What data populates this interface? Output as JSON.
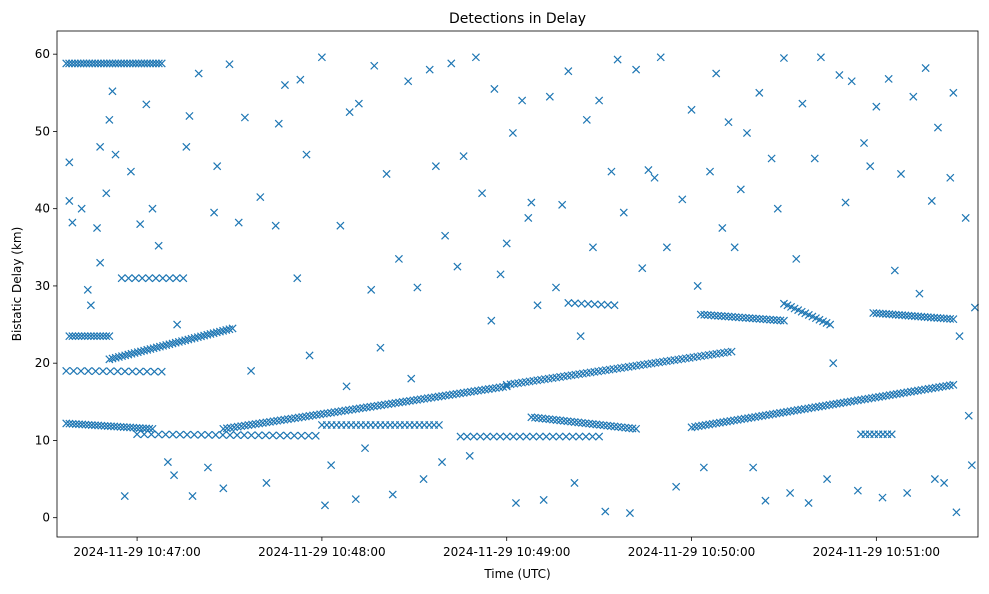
{
  "chart_data": {
    "type": "scatter",
    "title": "Detections in Delay",
    "xlabel": "Time (UTC)",
    "ylabel": "Bistatic Delay (km)",
    "marker": "x",
    "color": "#1f77b4",
    "grid": false,
    "legend": false,
    "xlim": [
      "2024-11-29 10:46:34",
      "2024-11-29 10:51:33"
    ],
    "ylim": [
      -2.5,
      63
    ],
    "x_ticks": [
      "2024-11-29 10:47:00",
      "2024-11-29 10:48:00",
      "2024-11-29 10:49:00",
      "2024-11-29 10:50:00",
      "2024-11-29 10:51:00"
    ],
    "y_ticks": [
      0,
      10,
      20,
      30,
      40,
      50,
      60
    ],
    "tracks": [
      {
        "start": [
          "2024-11-29 10:46:38",
          23.5
        ],
        "end": [
          "2024-11-29 10:46:51",
          23.5
        ],
        "points": 14
      },
      {
        "start": [
          "2024-11-29 10:46:51",
          20.5
        ],
        "end": [
          "2024-11-29 10:47:31",
          24.5
        ],
        "points": 40
      },
      {
        "start": [
          "2024-11-29 10:46:37",
          12.2
        ],
        "end": [
          "2024-11-29 10:47:05",
          11.5
        ],
        "points": 28
      },
      {
        "start": [
          "2024-11-29 10:47:28",
          11.5
        ],
        "end": [
          "2024-11-29 10:49:00",
          17.0
        ],
        "points": 80
      },
      {
        "start": [
          "2024-11-29 10:49:00",
          17.2
        ],
        "end": [
          "2024-11-29 10:50:13",
          21.5
        ],
        "points": 60
      },
      {
        "start": [
          "2024-11-29 10:49:08",
          13.0
        ],
        "end": [
          "2024-11-29 10:49:42",
          11.5
        ],
        "points": 30
      },
      {
        "start": [
          "2024-11-29 10:48:00",
          12.0
        ],
        "end": [
          "2024-11-29 10:48:38",
          12.0
        ],
        "points": 25
      },
      {
        "start": [
          "2024-11-29 10:50:00",
          11.7
        ],
        "end": [
          "2024-11-29 10:51:25",
          17.2
        ],
        "points": 75
      },
      {
        "start": [
          "2024-11-29 10:50:03",
          26.3
        ],
        "end": [
          "2024-11-29 10:50:30",
          25.5
        ],
        "points": 25
      },
      {
        "start": [
          "2024-11-29 10:50:30",
          27.7
        ],
        "end": [
          "2024-11-29 10:50:45",
          25.0
        ],
        "points": 14
      },
      {
        "start": [
          "2024-11-29 10:50:59",
          26.5
        ],
        "end": [
          "2024-11-29 10:51:25",
          25.7
        ],
        "points": 26
      },
      {
        "start": [
          "2024-11-29 10:46:37",
          58.8
        ],
        "end": [
          "2024-11-29 10:47:08",
          58.8
        ],
        "points": 34
      },
      {
        "start": [
          "2024-11-29 10:46:37",
          19.0
        ],
        "end": [
          "2024-11-29 10:47:08",
          18.9
        ],
        "points": 14
      },
      {
        "start": [
          "2024-11-29 10:46:55",
          31.0
        ],
        "end": [
          "2024-11-29 10:47:15",
          31.0
        ],
        "points": 10
      },
      {
        "start": [
          "2024-11-29 10:48:45",
          10.5
        ],
        "end": [
          "2024-11-29 10:49:30",
          10.5
        ],
        "points": 22
      },
      {
        "start": [
          "2024-11-29 10:47:00",
          10.8
        ],
        "end": [
          "2024-11-29 10:47:58",
          10.6
        ],
        "points": 26
      },
      {
        "start": [
          "2024-11-29 10:49:20",
          27.8
        ],
        "end": [
          "2024-11-29 10:49:35",
          27.5
        ],
        "points": 8
      },
      {
        "start": [
          "2024-11-29 10:50:55",
          10.8
        ],
        "end": [
          "2024-11-29 10:51:05",
          10.8
        ],
        "points": 8
      }
    ],
    "scattered_points": [
      [
        "2024-11-29 10:46:38",
        46.0
      ],
      [
        "2024-11-29 10:46:38",
        41.0
      ],
      [
        "2024-11-29 10:46:39",
        38.2
      ],
      [
        "2024-11-29 10:46:42",
        40.0
      ],
      [
        "2024-11-29 10:46:44",
        29.5
      ],
      [
        "2024-11-29 10:46:45",
        27.5
      ],
      [
        "2024-11-29 10:46:47",
        37.5
      ],
      [
        "2024-11-29 10:46:48",
        33.0
      ],
      [
        "2024-11-29 10:46:48",
        48.0
      ],
      [
        "2024-11-29 10:46:50",
        42.0
      ],
      [
        "2024-11-29 10:46:51",
        51.5
      ],
      [
        "2024-11-29 10:46:52",
        55.2
      ],
      [
        "2024-11-29 10:46:53",
        47.0
      ],
      [
        "2024-11-29 10:46:56",
        2.8
      ],
      [
        "2024-11-29 10:46:58",
        44.8
      ],
      [
        "2024-11-29 10:47:01",
        38.0
      ],
      [
        "2024-11-29 10:47:03",
        53.5
      ],
      [
        "2024-11-29 10:47:05",
        40.0
      ],
      [
        "2024-11-29 10:47:07",
        35.2
      ],
      [
        "2024-11-29 10:47:10",
        7.2
      ],
      [
        "2024-11-29 10:47:12",
        5.5
      ],
      [
        "2024-11-29 10:47:13",
        25.0
      ],
      [
        "2024-11-29 10:47:16",
        48.0
      ],
      [
        "2024-11-29 10:47:17",
        52.0
      ],
      [
        "2024-11-29 10:47:18",
        2.8
      ],
      [
        "2024-11-29 10:47:20",
        57.5
      ],
      [
        "2024-11-29 10:47:23",
        6.5
      ],
      [
        "2024-11-29 10:47:25",
        39.5
      ],
      [
        "2024-11-29 10:47:26",
        45.5
      ],
      [
        "2024-11-29 10:47:28",
        3.8
      ],
      [
        "2024-11-29 10:47:30",
        58.7
      ],
      [
        "2024-11-29 10:47:33",
        38.2
      ],
      [
        "2024-11-29 10:47:35",
        51.8
      ],
      [
        "2024-11-29 10:47:37",
        19.0
      ],
      [
        "2024-11-29 10:47:40",
        41.5
      ],
      [
        "2024-11-29 10:47:42",
        4.5
      ],
      [
        "2024-11-29 10:47:45",
        37.8
      ],
      [
        "2024-11-29 10:47:46",
        51.0
      ],
      [
        "2024-11-29 10:47:48",
        56.0
      ],
      [
        "2024-11-29 10:47:52",
        31.0
      ],
      [
        "2024-11-29 10:47:53",
        56.7
      ],
      [
        "2024-11-29 10:47:55",
        47.0
      ],
      [
        "2024-11-29 10:47:56",
        21.0
      ],
      [
        "2024-11-29 10:48:00",
        59.6
      ],
      [
        "2024-11-29 10:48:01",
        1.6
      ],
      [
        "2024-11-29 10:48:03",
        6.8
      ],
      [
        "2024-11-29 10:48:06",
        37.8
      ],
      [
        "2024-11-29 10:48:08",
        17.0
      ],
      [
        "2024-11-29 10:48:09",
        52.5
      ],
      [
        "2024-11-29 10:48:11",
        2.4
      ],
      [
        "2024-11-29 10:48:12",
        53.6
      ],
      [
        "2024-11-29 10:48:14",
        9.0
      ],
      [
        "2024-11-29 10:48:16",
        29.5
      ],
      [
        "2024-11-29 10:48:17",
        58.5
      ],
      [
        "2024-11-29 10:48:19",
        22.0
      ],
      [
        "2024-11-29 10:48:21",
        44.5
      ],
      [
        "2024-11-29 10:48:23",
        3.0
      ],
      [
        "2024-11-29 10:48:25",
        33.5
      ],
      [
        "2024-11-29 10:48:28",
        56.5
      ],
      [
        "2024-11-29 10:48:29",
        18.0
      ],
      [
        "2024-11-29 10:48:31",
        29.8
      ],
      [
        "2024-11-29 10:48:33",
        5.0
      ],
      [
        "2024-11-29 10:48:35",
        58.0
      ],
      [
        "2024-11-29 10:48:37",
        45.5
      ],
      [
        "2024-11-29 10:48:39",
        7.2
      ],
      [
        "2024-11-29 10:48:40",
        36.5
      ],
      [
        "2024-11-29 10:48:42",
        58.8
      ],
      [
        "2024-11-29 10:48:44",
        32.5
      ],
      [
        "2024-11-29 10:48:46",
        46.8
      ],
      [
        "2024-11-29 10:48:48",
        8.0
      ],
      [
        "2024-11-29 10:48:50",
        59.6
      ],
      [
        "2024-11-29 10:48:52",
        42.0
      ],
      [
        "2024-11-29 10:48:55",
        25.5
      ],
      [
        "2024-11-29 10:48:56",
        55.5
      ],
      [
        "2024-11-29 10:48:58",
        31.5
      ],
      [
        "2024-11-29 10:49:00",
        35.5
      ],
      [
        "2024-11-29 10:49:02",
        49.8
      ],
      [
        "2024-11-29 10:49:03",
        1.9
      ],
      [
        "2024-11-29 10:49:05",
        54.0
      ],
      [
        "2024-11-29 10:49:07",
        38.8
      ],
      [
        "2024-11-29 10:49:08",
        40.8
      ],
      [
        "2024-11-29 10:49:10",
        27.5
      ],
      [
        "2024-11-29 10:49:12",
        2.3
      ],
      [
        "2024-11-29 10:49:14",
        54.5
      ],
      [
        "2024-11-29 10:49:16",
        29.8
      ],
      [
        "2024-11-29 10:49:18",
        40.5
      ],
      [
        "2024-11-29 10:49:20",
        57.8
      ],
      [
        "2024-11-29 10:49:22",
        4.5
      ],
      [
        "2024-11-29 10:49:24",
        23.5
      ],
      [
        "2024-11-29 10:49:26",
        51.5
      ],
      [
        "2024-11-29 10:49:28",
        35.0
      ],
      [
        "2024-11-29 10:49:30",
        54.0
      ],
      [
        "2024-11-29 10:49:32",
        0.8
      ],
      [
        "2024-11-29 10:49:34",
        44.8
      ],
      [
        "2024-11-29 10:49:36",
        59.3
      ],
      [
        "2024-11-29 10:49:38",
        39.5
      ],
      [
        "2024-11-29 10:49:40",
        0.6
      ],
      [
        "2024-11-29 10:49:42",
        58.0
      ],
      [
        "2024-11-29 10:49:44",
        32.3
      ],
      [
        "2024-11-29 10:49:46",
        45.0
      ],
      [
        "2024-11-29 10:49:48",
        44.0
      ],
      [
        "2024-11-29 10:49:50",
        59.6
      ],
      [
        "2024-11-29 10:49:52",
        35.0
      ],
      [
        "2024-11-29 10:49:55",
        4.0
      ],
      [
        "2024-11-29 10:49:57",
        41.2
      ],
      [
        "2024-11-29 10:50:00",
        52.8
      ],
      [
        "2024-11-29 10:50:02",
        30.0
      ],
      [
        "2024-11-29 10:50:04",
        6.5
      ],
      [
        "2024-11-29 10:50:06",
        44.8
      ],
      [
        "2024-11-29 10:50:08",
        57.5
      ],
      [
        "2024-11-29 10:50:10",
        37.5
      ],
      [
        "2024-11-29 10:50:12",
        51.2
      ],
      [
        "2024-11-29 10:50:14",
        35.0
      ],
      [
        "2024-11-29 10:50:16",
        42.5
      ],
      [
        "2024-11-29 10:50:18",
        49.8
      ],
      [
        "2024-11-29 10:50:20",
        6.5
      ],
      [
        "2024-11-29 10:50:22",
        55.0
      ],
      [
        "2024-11-29 10:50:24",
        2.2
      ],
      [
        "2024-11-29 10:50:26",
        46.5
      ],
      [
        "2024-11-29 10:50:28",
        40.0
      ],
      [
        "2024-11-29 10:50:30",
        59.5
      ],
      [
        "2024-11-29 10:50:32",
        3.2
      ],
      [
        "2024-11-29 10:50:34",
        33.5
      ],
      [
        "2024-11-29 10:50:36",
        53.6
      ],
      [
        "2024-11-29 10:50:38",
        1.9
      ],
      [
        "2024-11-29 10:50:40",
        46.5
      ],
      [
        "2024-11-29 10:50:42",
        59.6
      ],
      [
        "2024-11-29 10:50:44",
        5.0
      ],
      [
        "2024-11-29 10:50:46",
        20.0
      ],
      [
        "2024-11-29 10:50:48",
        57.3
      ],
      [
        "2024-11-29 10:50:50",
        40.8
      ],
      [
        "2024-11-29 10:50:52",
        56.5
      ],
      [
        "2024-11-29 10:50:54",
        3.5
      ],
      [
        "2024-11-29 10:50:56",
        48.5
      ],
      [
        "2024-11-29 10:50:58",
        45.5
      ],
      [
        "2024-11-29 10:51:00",
        53.2
      ],
      [
        "2024-11-29 10:51:02",
        2.6
      ],
      [
        "2024-11-29 10:51:04",
        56.8
      ],
      [
        "2024-11-29 10:51:06",
        32.0
      ],
      [
        "2024-11-29 10:51:08",
        44.5
      ],
      [
        "2024-11-29 10:51:10",
        3.2
      ],
      [
        "2024-11-29 10:51:12",
        54.5
      ],
      [
        "2024-11-29 10:51:14",
        29.0
      ],
      [
        "2024-11-29 10:51:16",
        58.2
      ],
      [
        "2024-11-29 10:51:18",
        41.0
      ],
      [
        "2024-11-29 10:51:19",
        5.0
      ],
      [
        "2024-11-29 10:51:20",
        50.5
      ],
      [
        "2024-11-29 10:51:22",
        4.5
      ],
      [
        "2024-11-29 10:51:24",
        44.0
      ],
      [
        "2024-11-29 10:51:25",
        55.0
      ],
      [
        "2024-11-29 10:51:26",
        0.7
      ],
      [
        "2024-11-29 10:51:27",
        23.5
      ],
      [
        "2024-11-29 10:51:29",
        38.8
      ],
      [
        "2024-11-29 10:51:30",
        13.2
      ],
      [
        "2024-11-29 10:51:31",
        6.8
      ],
      [
        "2024-11-29 10:51:32",
        27.2
      ]
    ]
  }
}
